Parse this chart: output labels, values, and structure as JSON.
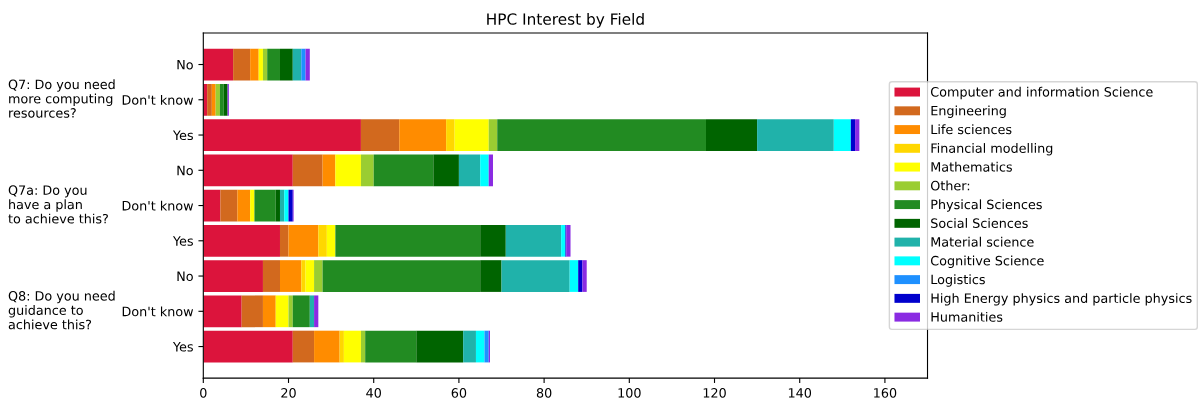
{
  "chart_data": {
    "type": "bar",
    "orientation": "horizontal",
    "stacked": true,
    "title": "HPC Interest by Field",
    "categories": [
      "No",
      "Don't know",
      "Yes",
      "No",
      "Don't know",
      "Yes",
      "No",
      "Don't know",
      "Yes"
    ],
    "annotations": [
      "Q7: Do you need\nmore computing\nresources?",
      "Q7a: Do you\nhave a plan\nto achieve this?",
      "Q8: Do you need\nguidance to\nachieve this?"
    ],
    "xlim": [
      0,
      170
    ],
    "xticks": [
      0,
      20,
      40,
      60,
      80,
      100,
      120,
      140,
      160
    ],
    "legend": "right",
    "series": [
      {
        "name": "Computer and information Science",
        "color": "#dc143c",
        "values": [
          7,
          0.9,
          37,
          21,
          4,
          18,
          14,
          9,
          21
        ]
      },
      {
        "name": "Engineering",
        "color": "#d2691e",
        "values": [
          4,
          1.1,
          9,
          7,
          4,
          2,
          4,
          5,
          5
        ]
      },
      {
        "name": "Life sciences",
        "color": "#ff8c00",
        "values": [
          2,
          0.9,
          11,
          3,
          3,
          7,
          5,
          3,
          6
        ]
      },
      {
        "name": "Financial modelling",
        "color": "#ffd700",
        "values": [
          0,
          0,
          2,
          0,
          0,
          2,
          1,
          0,
          1
        ]
      },
      {
        "name": "Mathematics",
        "color": "#ffff00",
        "values": [
          1,
          0,
          8,
          6,
          1,
          2,
          2,
          3,
          4
        ]
      },
      {
        "name": "Other:",
        "color": "#9acd32",
        "values": [
          1,
          1,
          2,
          3,
          0,
          0,
          2,
          1,
          1
        ]
      },
      {
        "name": "Physical Sciences",
        "color": "#228b22",
        "values": [
          3,
          0.9,
          49,
          14,
          5,
          34,
          37,
          4,
          12
        ]
      },
      {
        "name": "Social Sciences",
        "color": "#006400",
        "values": [
          3,
          0.9,
          12,
          6,
          1,
          6,
          5,
          0,
          11
        ]
      },
      {
        "name": "Material science",
        "color": "#20b2aa",
        "values": [
          2,
          0,
          18,
          5,
          1,
          13,
          16,
          1,
          3
        ]
      },
      {
        "name": "Cognitive Science",
        "color": "#00ffff",
        "values": [
          0,
          0,
          4,
          2,
          1,
          1,
          2,
          0,
          2
        ]
      },
      {
        "name": "Logistics",
        "color": "#1e90ff",
        "values": [
          1,
          0,
          0,
          0,
          0,
          0,
          0,
          0,
          1
        ]
      },
      {
        "name": "High Energy physics and particle physics",
        "color": "#0000cd",
        "values": [
          0,
          0,
          1,
          0,
          1,
          0.2,
          1,
          0,
          0
        ]
      },
      {
        "name": "Humanities",
        "color": "#8a2be2",
        "values": [
          1,
          0.3,
          1,
          1,
          0.2,
          1,
          1,
          1,
          0.3
        ]
      }
    ]
  }
}
